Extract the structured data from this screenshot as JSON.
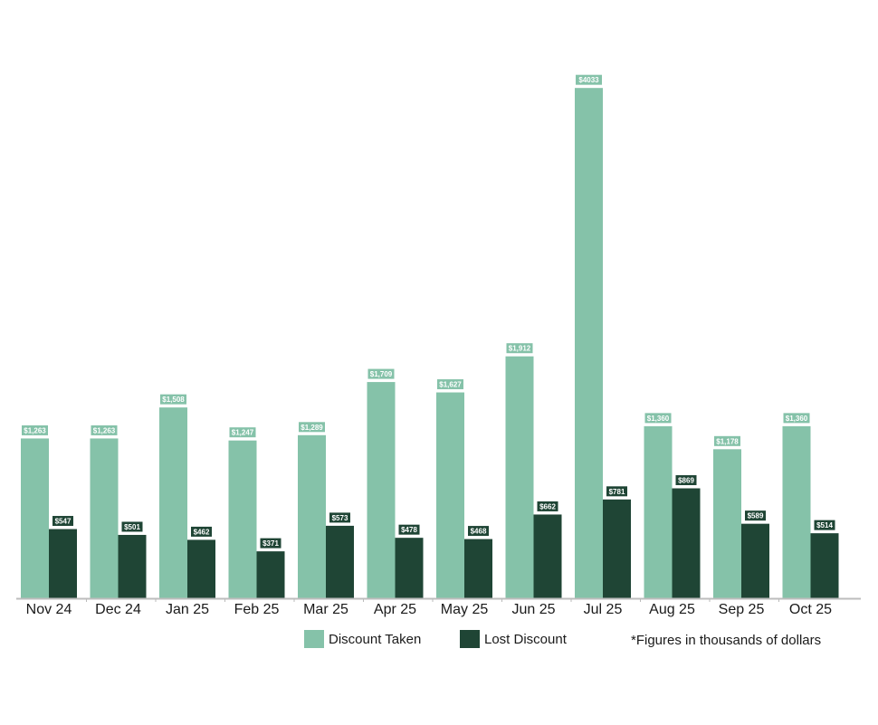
{
  "chart_data": {
    "type": "bar",
    "categories": [
      "Nov 24",
      "Dec 24",
      "Jan 25",
      "Feb 25",
      "Mar 25",
      "Apr 25",
      "May 25",
      "Jun 25",
      "Jul 25",
      "Aug 25",
      "Sep 25",
      "Oct 25"
    ],
    "series": [
      {
        "name": "Discount Taken",
        "color": "#85c2a9",
        "values": [
          1263,
          1263,
          1508,
          1247,
          1289,
          1709,
          1627,
          1912,
          4033,
          1360,
          1178,
          1360
        ],
        "labels": [
          "$1,263",
          "$1,263",
          "$1,508",
          "$1,247",
          "$1,289",
          "$1,709",
          "$1,627",
          "$1,912",
          "$4033",
          "$1,360",
          "$1,178",
          "$1,360"
        ]
      },
      {
        "name": "Lost Discount",
        "color": "#1f4535",
        "values": [
          547,
          501,
          462,
          371,
          573,
          478,
          468,
          662,
          781,
          869,
          589,
          514
        ],
        "labels": [
          "$547",
          "$501",
          "$462",
          "$371",
          "$573",
          "$478",
          "$468",
          "$662",
          "$781",
          "$869",
          "$589",
          "$514"
        ]
      }
    ],
    "ylim": [
      0,
      4300
    ],
    "grid": false,
    "legend_position": "bottom",
    "annotation": "*Figures in thousands of dollars"
  }
}
